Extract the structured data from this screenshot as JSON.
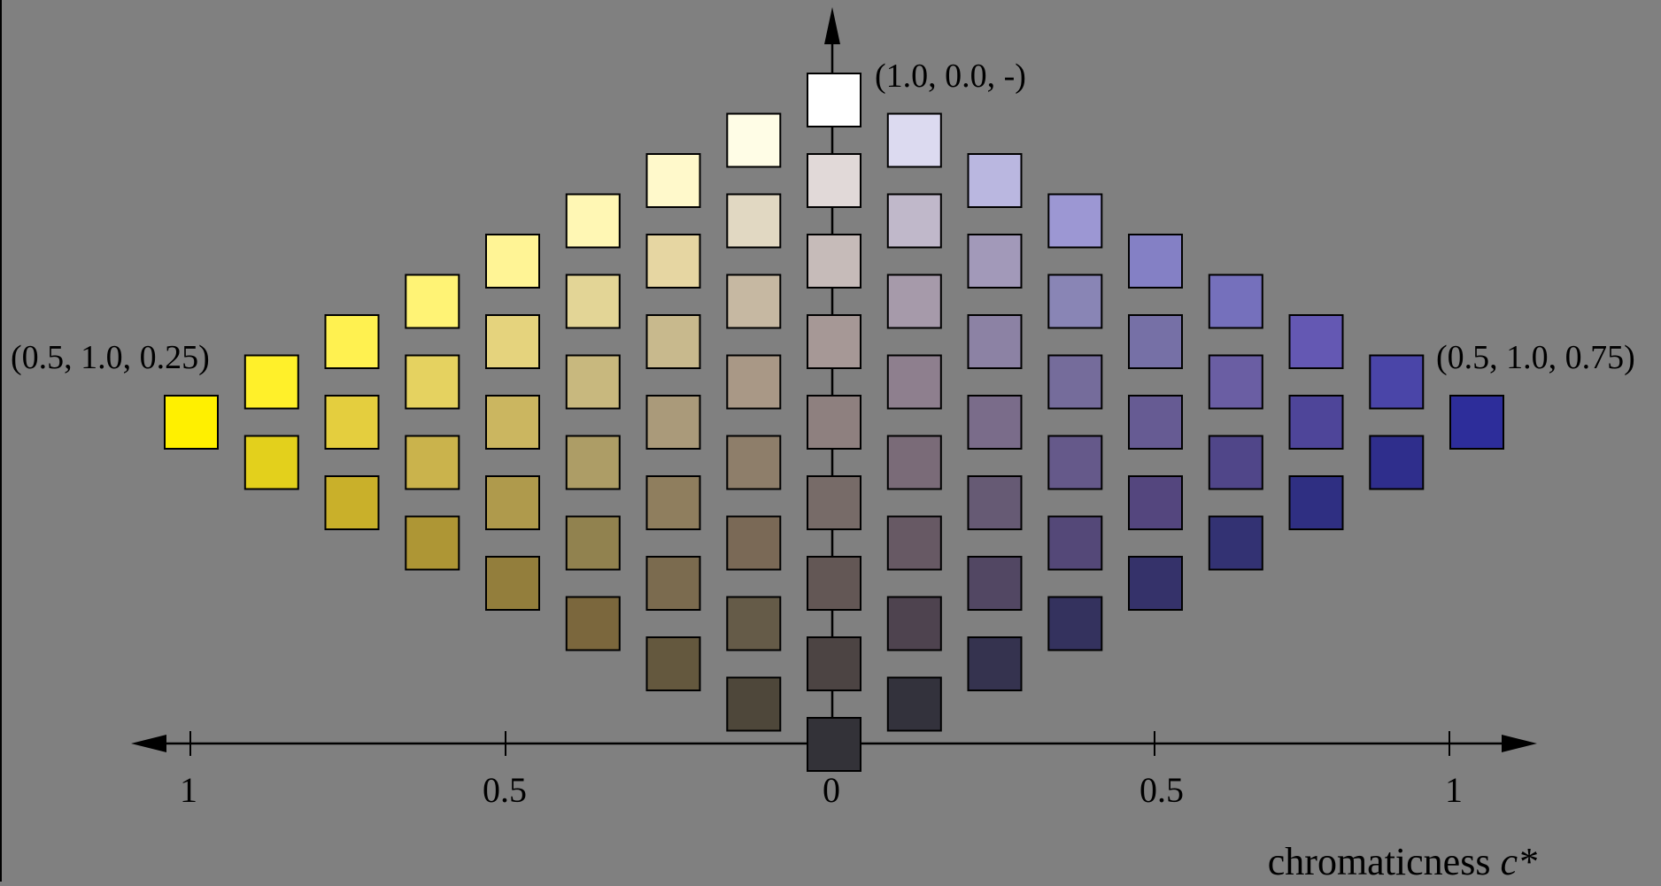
{
  "labels": {
    "white_point": "(1.0, 0.0, -)",
    "yellow_point": "(0.5, 1.0, 0.25)",
    "blue_point": "(0.5, 1.0, 0.75)",
    "axis_title_prefix": "chromaticness ",
    "axis_title_var": "c*"
  },
  "ticks": {
    "left_outer": "1",
    "left_mid": "0.5",
    "center": "0",
    "right_mid": "0.5",
    "right_outer": "1"
  },
  "colors": {
    "background": "#808080",
    "axis": "#000000",
    "yellow_hue": "#FFF000",
    "blue_hue": "#2D2D9A",
    "white": "#FFFFFF",
    "black": "#333238"
  },
  "columns": [
    {
      "side": "yellow",
      "colors": [
        "#FFF000"
      ]
    },
    {
      "side": "yellow",
      "colors": [
        "#FFF02A",
        "#E3D01C"
      ]
    },
    {
      "side": "yellow",
      "colors": [
        "#FFF150",
        "#E4CE3E",
        "#C9B02A"
      ]
    },
    {
      "side": "yellow",
      "colors": [
        "#FFF375",
        "#E5D260",
        "#CAB34C",
        "#AE9635"
      ]
    },
    {
      "side": "yellow",
      "colors": [
        "#FFF495",
        "#E5D37D",
        "#CBB660",
        "#AF9A4C",
        "#937E3C"
      ]
    },
    {
      "side": "yellow",
      "colors": [
        "#FFF7B4",
        "#E3D596",
        "#C8B87E",
        "#AD9D66",
        "#91824F",
        "#7B673D"
      ]
    },
    {
      "side": "yellow",
      "colors": [
        "#FFF9CB",
        "#E6D6A2",
        "#C8B98D",
        "#AA9A7A",
        "#8F7E5E",
        "#7B6B4F",
        "#64583E"
      ]
    },
    {
      "side": "yellow",
      "colors": [
        "#FFFDE6",
        "#E1D8C2",
        "#C6B8A2",
        "#A99886",
        "#8E7E6A",
        "#7A6956",
        "#655B48",
        "#4E473A"
      ]
    },
    {
      "side": "center",
      "colors": [
        "#FFFFFF",
        "#E1D9D8",
        "#C6BBB9",
        "#A69896",
        "#8E807F",
        "#776B68",
        "#635755",
        "#4C4443",
        "#333238"
      ]
    },
    {
      "side": "blue",
      "colors": [
        "#DCDAF0",
        "#C0B8CA",
        "#A69AAA",
        "#8E7F8E",
        "#7A6B78",
        "#675964",
        "#4E434F",
        "#33323C"
      ]
    },
    {
      "side": "blue",
      "colors": [
        "#BAB7E0",
        "#A299B9",
        "#8C82A4",
        "#7A6C8A",
        "#665A74",
        "#524763",
        "#35334F"
      ]
    },
    {
      "side": "blue",
      "colors": [
        "#9C97D3",
        "#8985B5",
        "#756C9B",
        "#65598A",
        "#544878",
        "#34325E"
      ]
    },
    {
      "side": "blue",
      "colors": [
        "#8480C5",
        "#7670A6",
        "#665B93",
        "#54467E",
        "#35326A"
      ]
    },
    {
      "side": "blue",
      "colors": [
        "#7570BC",
        "#6A5EA3",
        "#504689",
        "#333273"
      ]
    },
    {
      "side": "blue",
      "colors": [
        "#6458B3",
        "#4E4599",
        "#2F2F82"
      ]
    },
    {
      "side": "blue",
      "colors": [
        "#4A45A8",
        "#2F2E8C"
      ]
    },
    {
      "side": "blue",
      "colors": [
        "#2D2D9A"
      ]
    }
  ]
}
